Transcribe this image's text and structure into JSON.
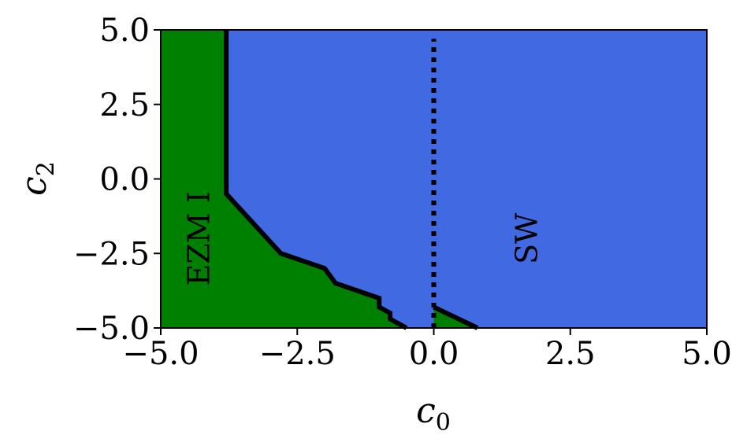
{
  "chart_data": {
    "type": "area",
    "title": "",
    "xlabel": "c",
    "xlabel_subscript": "0",
    "ylabel": "c",
    "ylabel_subscript": "2",
    "xlim": [
      -5.0,
      5.0
    ],
    "ylim": [
      -5.0,
      5.0
    ],
    "x_ticks": [
      -5.0,
      -2.5,
      0.0,
      2.5,
      5.0
    ],
    "x_tick_labels": [
      "−5.0",
      "−2.5",
      "0.0",
      "2.5",
      "5.0"
    ],
    "y_ticks": [
      -5.0,
      -2.5,
      0.0,
      2.5,
      5.0
    ],
    "y_tick_labels": [
      "−5.0",
      "−2.5",
      "0.0",
      "2.5",
      "5.0"
    ],
    "grid": false,
    "colors": {
      "background_region": "#4169e1",
      "ezm_region": "#008000",
      "boundary": "#000000"
    },
    "regions": [
      {
        "label": "EZM I",
        "color": "#008000",
        "boundary": [
          [
            -3.8,
            5.0
          ],
          [
            -3.8,
            -0.5
          ],
          [
            -2.8,
            -2.5
          ],
          [
            -2.0,
            -3.0
          ],
          [
            -1.8,
            -3.5
          ],
          [
            -1.0,
            -4.0
          ],
          [
            -1.0,
            -4.3
          ],
          [
            -0.8,
            -4.5
          ],
          [
            -0.8,
            -4.7
          ],
          [
            -0.5,
            -5.0
          ]
        ]
      },
      {
        "label": "",
        "color": "#008000",
        "boundary": [
          [
            0.0,
            -4.3
          ],
          [
            0.8,
            -5.0
          ]
        ]
      },
      {
        "label": "SW",
        "color": "#4169e1"
      }
    ],
    "annotations": [
      {
        "text": "EZM I",
        "x": -4.25,
        "y": -2.0,
        "rotation": -90
      },
      {
        "text": "SW",
        "x": 1.75,
        "y": -2.0,
        "rotation": -90
      }
    ],
    "reference_line": {
      "x": 0.0,
      "style": "dotted",
      "y_range": [
        -5.0,
        4.7
      ]
    }
  }
}
